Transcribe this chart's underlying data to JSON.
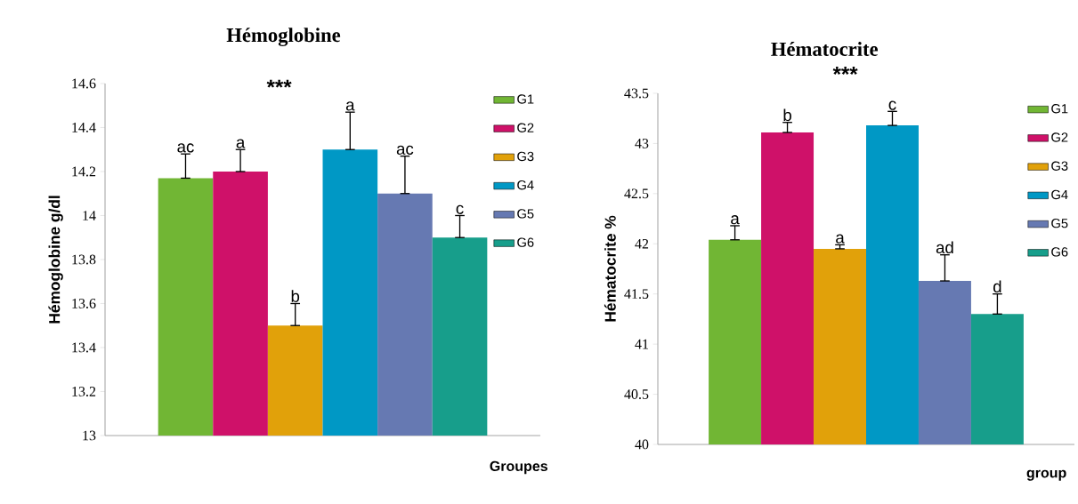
{
  "chart_data": [
    {
      "type": "bar",
      "title": "Hémoglobine",
      "xlabel": "Groupes",
      "ylabel": "Hémoglobine g/dl",
      "categories": [
        null
      ],
      "legend": "right",
      "annotations": [
        "***"
      ],
      "ylim": [
        13,
        14.6
      ],
      "yticks": [
        13,
        13.2,
        13.4,
        13.6,
        13.8,
        14,
        14.2,
        14.4,
        14.6
      ],
      "series": [
        {
          "name": "G1",
          "color": "#71b634",
          "values": [
            14.17
          ],
          "errors": [
            [
              14.17,
              14.28
            ]
          ],
          "value_labels": [
            "ac"
          ]
        },
        {
          "name": "G2",
          "color": "#cf1169",
          "values": [
            14.2
          ],
          "errors": [
            [
              14.2,
              14.3
            ]
          ],
          "value_labels": [
            "a"
          ]
        },
        {
          "name": "G3",
          "color": "#e1a10a",
          "values": [
            13.5
          ],
          "errors": [
            [
              13.5,
              13.6
            ]
          ],
          "value_labels": [
            "b"
          ]
        },
        {
          "name": "G4",
          "color": "#0098c5",
          "values": [
            14.3
          ],
          "errors": [
            [
              14.3,
              14.47
            ]
          ],
          "value_labels": [
            "a"
          ]
        },
        {
          "name": "G5",
          "color": "#6679b2",
          "values": [
            14.1
          ],
          "errors": [
            [
              14.1,
              14.27
            ]
          ],
          "value_labels": [
            "ac"
          ]
        },
        {
          "name": "G6",
          "color": "#179e8b",
          "values": [
            13.9
          ],
          "errors": [
            [
              13.9,
              14.0
            ]
          ],
          "value_labels": [
            "c"
          ]
        }
      ]
    },
    {
      "type": "bar",
      "title": "Hématocrite",
      "xlabel": "group",
      "ylabel": "Hématocrite %",
      "categories": [
        null
      ],
      "legend": "right",
      "annotations": [
        "***"
      ],
      "ylim": [
        40,
        43.5
      ],
      "yticks": [
        40,
        40.5,
        41,
        41.5,
        42,
        42.5,
        43,
        43.5
      ],
      "series": [
        {
          "name": "G1",
          "color": "#71b634",
          "values": [
            42.04
          ],
          "errors": [
            [
              42.04,
              42.18
            ]
          ],
          "value_labels": [
            "a"
          ]
        },
        {
          "name": "G2",
          "color": "#cf1169",
          "values": [
            43.11
          ],
          "errors": [
            [
              43.11,
              43.21
            ]
          ],
          "value_labels": [
            "b"
          ]
        },
        {
          "name": "G3",
          "color": "#e1a10a",
          "values": [
            41.95
          ],
          "errors": [
            [
              41.95,
              41.99
            ]
          ],
          "value_labels": [
            "a"
          ]
        },
        {
          "name": "G4",
          "color": "#0098c5",
          "values": [
            43.18
          ],
          "errors": [
            [
              43.18,
              43.32
            ]
          ],
          "value_labels": [
            "c"
          ]
        },
        {
          "name": "G5",
          "color": "#6679b2",
          "values": [
            41.63
          ],
          "errors": [
            [
              41.63,
              41.89
            ]
          ],
          "value_labels": [
            "ad"
          ]
        },
        {
          "name": "G6",
          "color": "#179e8b",
          "values": [
            41.3
          ],
          "errors": [
            [
              41.3,
              41.5
            ]
          ],
          "value_labels": [
            "d"
          ]
        }
      ]
    }
  ]
}
